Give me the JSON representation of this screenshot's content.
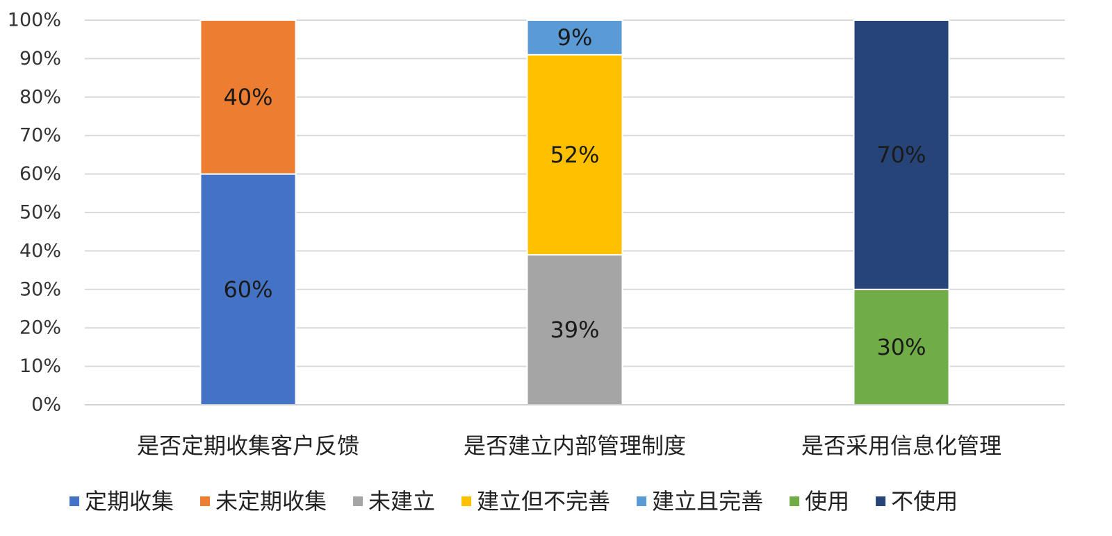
{
  "chart_data": {
    "type": "bar",
    "stacked": true,
    "normalized": true,
    "categories": [
      "是否定期收集客户反馈",
      "是否建立内部管理制度",
      "是否采用信息化管理"
    ],
    "y_ticks": [
      "0%",
      "10%",
      "20%",
      "30%",
      "40%",
      "50%",
      "60%",
      "70%",
      "80%",
      "90%",
      "100%"
    ],
    "ylim": [
      0,
      100
    ],
    "grid": true,
    "legend_position": "bottom",
    "series": [
      {
        "name": "定期收集",
        "color": "#4472C4",
        "values": [
          60,
          null,
          null
        ],
        "labels": [
          "60%",
          null,
          null
        ]
      },
      {
        "name": "未定期收集",
        "color": "#ED7D31",
        "values": [
          40,
          null,
          null
        ],
        "labels": [
          "40%",
          null,
          null
        ]
      },
      {
        "name": "未建立",
        "color": "#A5A5A5",
        "values": [
          null,
          39,
          null
        ],
        "labels": [
          null,
          "39%",
          null
        ]
      },
      {
        "name": "建立但不完善",
        "color": "#FFC000",
        "values": [
          null,
          52,
          null
        ],
        "labels": [
          null,
          "52%",
          null
        ]
      },
      {
        "name": "建立且完善",
        "color": "#5B9BD5",
        "values": [
          null,
          9,
          null
        ],
        "labels": [
          null,
          "9%",
          null
        ]
      },
      {
        "name": "使用",
        "color": "#70AD47",
        "values": [
          null,
          null,
          30
        ],
        "labels": [
          null,
          null,
          "30%"
        ]
      },
      {
        "name": "不使用",
        "color": "#264478",
        "values": [
          null,
          null,
          70
        ],
        "labels": [
          null,
          null,
          "70%"
        ]
      }
    ]
  }
}
